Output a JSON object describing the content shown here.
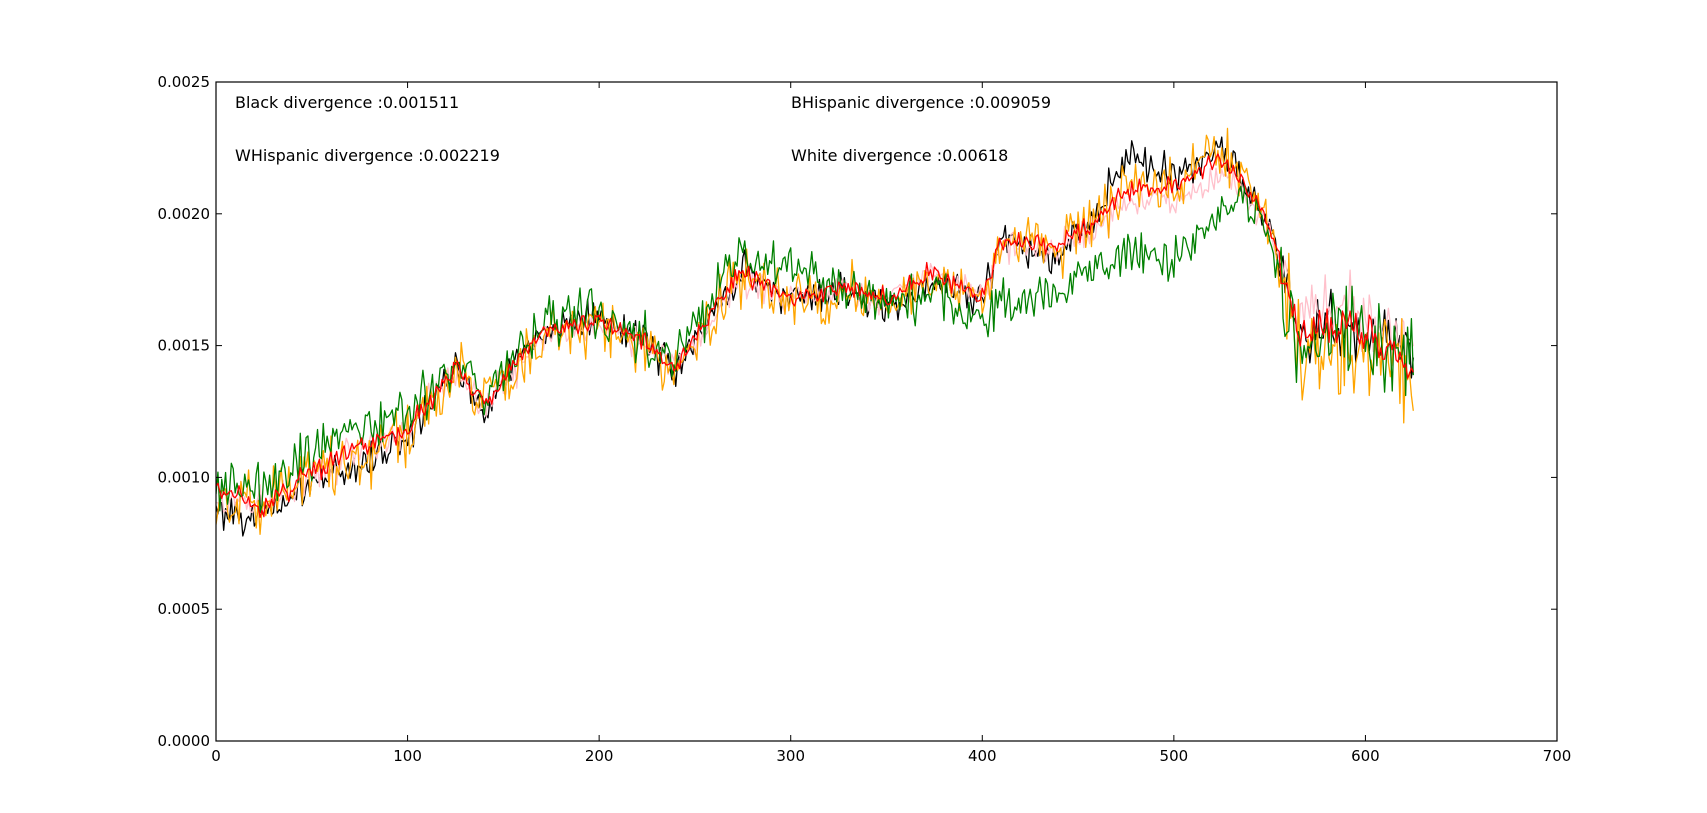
{
  "chart_data": {
    "type": "line",
    "title": "",
    "xlabel": "",
    "ylabel": "",
    "xlim": [
      0,
      700
    ],
    "ylim": [
      0,
      0.0025
    ],
    "x_ticks": [
      0,
      100,
      200,
      300,
      400,
      500,
      600,
      700
    ],
    "x_tick_labels": [
      "0",
      "100",
      "200",
      "300",
      "400",
      "500",
      "600",
      "700"
    ],
    "y_ticks": [
      0,
      0.0005,
      0.001,
      0.0015,
      0.002,
      0.0025
    ],
    "y_tick_labels": [
      "0.0000",
      "0.0005",
      "0.0010",
      "0.0015",
      "0.0020",
      "0.0025"
    ],
    "grid": false,
    "legend": "none",
    "annotations": {
      "black": "Black divergence :0.001511",
      "bhispanic": "BHispanic divergence :0.009059",
      "whispanic": "WHispanic divergence :0.002219",
      "white": "White divergence :0.00618"
    },
    "x_range": [
      0,
      625
    ],
    "series": [
      {
        "color": "#000000",
        "noise": 0.0001,
        "trend": [
          [
            0,
            0.00088
          ],
          [
            25,
            0.00085
          ],
          [
            50,
            0.00098
          ],
          [
            75,
            0.00105
          ],
          [
            100,
            0.00115
          ],
          [
            125,
            0.00142
          ],
          [
            140,
            0.00125
          ],
          [
            160,
            0.00148
          ],
          [
            175,
            0.00158
          ],
          [
            200,
            0.0016
          ],
          [
            225,
            0.00152
          ],
          [
            240,
            0.0014
          ],
          [
            260,
            0.00165
          ],
          [
            275,
            0.00178
          ],
          [
            300,
            0.00168
          ],
          [
            325,
            0.0017
          ],
          [
            350,
            0.00165
          ],
          [
            375,
            0.00175
          ],
          [
            400,
            0.00168
          ],
          [
            410,
            0.0019
          ],
          [
            440,
            0.00185
          ],
          [
            460,
            0.002
          ],
          [
            475,
            0.00222
          ],
          [
            500,
            0.00215
          ],
          [
            525,
            0.00225
          ],
          [
            535,
            0.00215
          ],
          [
            550,
            0.00195
          ],
          [
            565,
            0.00155
          ],
          [
            590,
            0.0016
          ],
          [
            610,
            0.0015
          ],
          [
            625,
            0.0015
          ]
        ]
      },
      {
        "color": "#ffc0cb",
        "noise": 9e-05,
        "trend": [
          [
            0,
            0.00092
          ],
          [
            25,
            0.0009
          ],
          [
            50,
            0.001
          ],
          [
            75,
            0.0011
          ],
          [
            100,
            0.00118
          ],
          [
            125,
            0.0014
          ],
          [
            140,
            0.00128
          ],
          [
            160,
            0.00145
          ],
          [
            175,
            0.00155
          ],
          [
            200,
            0.00158
          ],
          [
            225,
            0.0015
          ],
          [
            240,
            0.00142
          ],
          [
            260,
            0.00162
          ],
          [
            275,
            0.00175
          ],
          [
            300,
            0.00168
          ],
          [
            325,
            0.00172
          ],
          [
            350,
            0.00168
          ],
          [
            375,
            0.00178
          ],
          [
            400,
            0.0017
          ],
          [
            410,
            0.00188
          ],
          [
            440,
            0.00188
          ],
          [
            460,
            0.00195
          ],
          [
            475,
            0.00205
          ],
          [
            500,
            0.00205
          ],
          [
            525,
            0.00215
          ],
          [
            535,
            0.0021
          ],
          [
            550,
            0.00195
          ],
          [
            565,
            0.0016
          ],
          [
            590,
            0.00165
          ],
          [
            610,
            0.00155
          ],
          [
            625,
            0.0015
          ]
        ]
      },
      {
        "color": "#ffa500",
        "noise": 0.00017,
        "trend": [
          [
            0,
            0.0009
          ],
          [
            25,
            0.00088
          ],
          [
            50,
            0.001
          ],
          [
            75,
            0.00108
          ],
          [
            100,
            0.00115
          ],
          [
            125,
            0.0014
          ],
          [
            140,
            0.0013
          ],
          [
            160,
            0.00145
          ],
          [
            175,
            0.00155
          ],
          [
            200,
            0.00158
          ],
          [
            225,
            0.0015
          ],
          [
            240,
            0.0014
          ],
          [
            260,
            0.00162
          ],
          [
            275,
            0.00178
          ],
          [
            300,
            0.00165
          ],
          [
            325,
            0.0017
          ],
          [
            350,
            0.00165
          ],
          [
            375,
            0.00175
          ],
          [
            400,
            0.00168
          ],
          [
            410,
            0.00188
          ],
          [
            440,
            0.00188
          ],
          [
            460,
            0.00198
          ],
          [
            475,
            0.0021
          ],
          [
            500,
            0.0021
          ],
          [
            525,
            0.00225
          ],
          [
            535,
            0.00215
          ],
          [
            550,
            0.0019
          ],
          [
            565,
            0.0015
          ],
          [
            590,
            0.0015
          ],
          [
            610,
            0.00145
          ],
          [
            625,
            0.0014
          ]
        ]
      },
      {
        "color": "#008000",
        "noise": 0.00014,
        "trend": [
          [
            0,
            0.00095
          ],
          [
            25,
            0.00095
          ],
          [
            50,
            0.0011
          ],
          [
            75,
            0.0012
          ],
          [
            100,
            0.00122
          ],
          [
            125,
            0.00145
          ],
          [
            140,
            0.0013
          ],
          [
            160,
            0.0015
          ],
          [
            175,
            0.0016
          ],
          [
            200,
            0.00162
          ],
          [
            225,
            0.0015
          ],
          [
            240,
            0.00145
          ],
          [
            260,
            0.00168
          ],
          [
            275,
            0.00185
          ],
          [
            300,
            0.0018
          ],
          [
            325,
            0.00172
          ],
          [
            350,
            0.00165
          ],
          [
            375,
            0.00172
          ],
          [
            400,
            0.0016
          ],
          [
            410,
            0.00165
          ],
          [
            440,
            0.0017
          ],
          [
            460,
            0.0018
          ],
          [
            475,
            0.00185
          ],
          [
            500,
            0.0018
          ],
          [
            525,
            0.002
          ],
          [
            535,
            0.00205
          ],
          [
            550,
            0.0019
          ],
          [
            565,
            0.0015
          ],
          [
            590,
            0.0016
          ],
          [
            610,
            0.0015
          ],
          [
            625,
            0.00145
          ]
        ]
      },
      {
        "color": "#ff0000",
        "noise": 6e-05,
        "trend": [
          [
            0,
            0.00095
          ],
          [
            25,
            0.00088
          ],
          [
            50,
            0.00102
          ],
          [
            75,
            0.00112
          ],
          [
            100,
            0.00118
          ],
          [
            125,
            0.00142
          ],
          [
            140,
            0.00128
          ],
          [
            160,
            0.00148
          ],
          [
            175,
            0.00157
          ],
          [
            200,
            0.0016
          ],
          [
            225,
            0.00152
          ],
          [
            240,
            0.0014
          ],
          [
            260,
            0.00165
          ],
          [
            275,
            0.00178
          ],
          [
            300,
            0.00168
          ],
          [
            325,
            0.00172
          ],
          [
            350,
            0.00168
          ],
          [
            375,
            0.00178
          ],
          [
            400,
            0.00168
          ],
          [
            410,
            0.0019
          ],
          [
            440,
            0.00188
          ],
          [
            460,
            0.00198
          ],
          [
            475,
            0.0021
          ],
          [
            500,
            0.0021
          ],
          [
            525,
            0.0022
          ],
          [
            535,
            0.00212
          ],
          [
            550,
            0.00195
          ],
          [
            565,
            0.00155
          ],
          [
            590,
            0.0016
          ],
          [
            610,
            0.0015
          ],
          [
            625,
            0.0014
          ]
        ]
      }
    ]
  }
}
